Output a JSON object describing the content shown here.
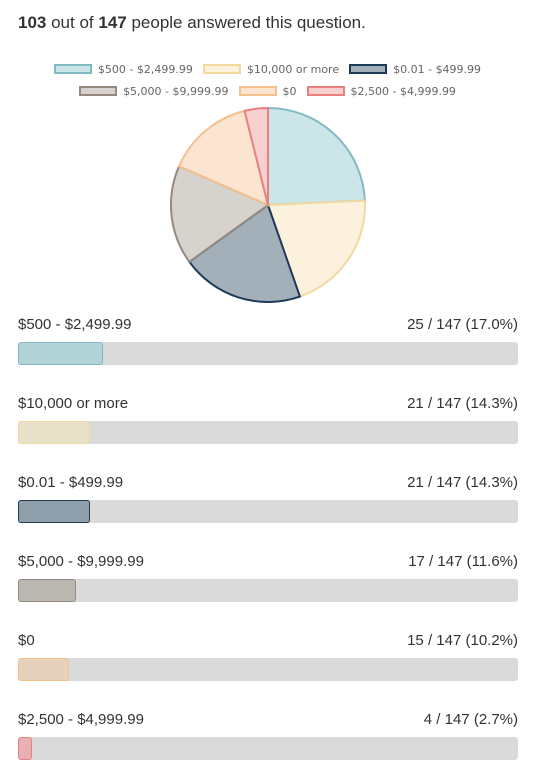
{
  "summary": {
    "answered": "103",
    "mid": " out of ",
    "total": "147",
    "suffix": " people answered this question."
  },
  "chart_data": {
    "type": "pie",
    "total": 147,
    "series": [
      {
        "name": "$500 - $2,499.99",
        "value": 25,
        "label": "25 / 147 (17.0%)",
        "fraction": 0.17,
        "fill": "#cce5e8",
        "stroke": "#82bac3",
        "bar_fill": "#b2d4d9"
      },
      {
        "name": "$10,000 or more",
        "value": 21,
        "label": "21 / 147 (14.3%)",
        "fraction": 0.143,
        "fill": "#fbf1dd",
        "stroke": "#f2d9a0",
        "bar_fill": "#e8e0c8"
      },
      {
        "name": "$0.01 - $499.99",
        "value": 21,
        "label": "21 / 147 (14.3%)",
        "fraction": 0.143,
        "fill": "#a3b0ba",
        "stroke": "#1d3a57",
        "bar_fill": "#8f9fab"
      },
      {
        "name": "$5,000 - $9,999.99",
        "value": 17,
        "label": "17 / 147 (11.6%)",
        "fraction": 0.116,
        "fill": "#d6d2cd",
        "stroke": "#948a80",
        "bar_fill": "#bbb7b1"
      },
      {
        "name": "$0",
        "value": 15,
        "label": "15 / 147 (10.2%)",
        "fraction": 0.102,
        "fill": "#fbe5d0",
        "stroke": "#f4c08e",
        "bar_fill": "#e6d2bc"
      },
      {
        "name": "$2,500 - $4,999.99",
        "value": 4,
        "label": "4 / 147 (2.7%)",
        "fraction": 0.027,
        "fill": "#f9d0d0",
        "stroke": "#e88080",
        "bar_fill": "#e8b0b3"
      }
    ],
    "legend_rows": [
      [
        0,
        1,
        2
      ],
      [
        3,
        4,
        5
      ]
    ]
  }
}
